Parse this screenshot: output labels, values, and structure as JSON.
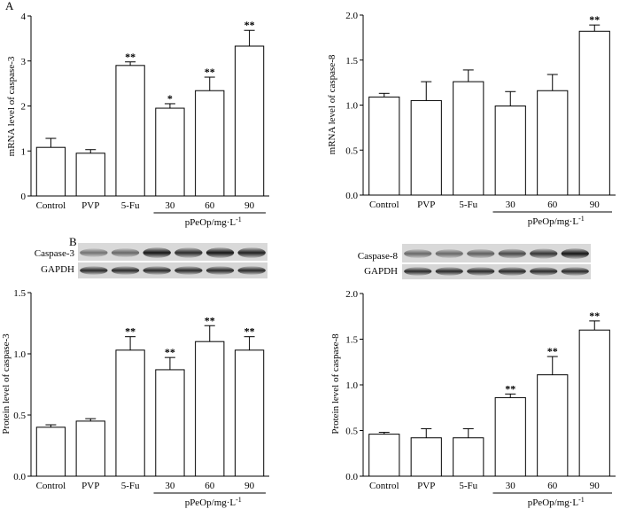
{
  "figure": {
    "panel_a_label": "A",
    "panel_b_label": "B"
  },
  "blots": [
    {
      "labels": [
        "Caspase-3",
        "GAPDH"
      ]
    },
    {
      "labels": [
        "Caspase-8",
        "GAPDH"
      ]
    }
  ],
  "chart_data": [
    {
      "type": "bar",
      "title": "",
      "xlabel": "",
      "ylabel": "mRNA level of caspase-3",
      "ylim": [
        0,
        4
      ],
      "yticks": [
        "0",
        "1",
        "2",
        "3",
        "4"
      ],
      "categories": [
        "Control",
        "PVP",
        "5-Fu",
        "30",
        "60",
        "90"
      ],
      "values": [
        1.08,
        0.95,
        2.9,
        1.95,
        2.34,
        3.33
      ],
      "errors": [
        0.2,
        0.08,
        0.08,
        0.1,
        0.3,
        0.35
      ],
      "significance": [
        "",
        "",
        "**",
        "*",
        "**",
        "**"
      ],
      "group_label": "pPeOp/mg·L",
      "group_label_sup": "-1",
      "grid": false
    },
    {
      "type": "bar",
      "title": "",
      "xlabel": "",
      "ylabel": "mRNA level of caspase-8",
      "ylim": [
        0,
        2.0
      ],
      "yticks": [
        "0.0",
        "0.5",
        "1.0",
        "1.5",
        "2.0"
      ],
      "categories": [
        "Control",
        "PVP",
        "5-Fu",
        "30",
        "60",
        "90"
      ],
      "values": [
        1.09,
        1.05,
        1.26,
        0.99,
        1.16,
        1.82
      ],
      "errors": [
        0.04,
        0.21,
        0.13,
        0.16,
        0.18,
        0.07
      ],
      "significance": [
        "",
        "",
        "",
        "",
        "",
        "**"
      ],
      "group_label": "pPeOp/mg·L",
      "group_label_sup": "-1",
      "grid": false
    },
    {
      "type": "bar",
      "title": "",
      "xlabel": "",
      "ylabel": "Protein level of caspase-3",
      "ylim": [
        0,
        1.5
      ],
      "yticks": [
        "0.0",
        "0.5",
        "1.0",
        "1.5"
      ],
      "categories": [
        "Control",
        "PVP",
        "5-Fu",
        "30",
        "60",
        "90"
      ],
      "values": [
        0.4,
        0.45,
        1.03,
        0.87,
        1.1,
        1.03
      ],
      "errors": [
        0.02,
        0.02,
        0.11,
        0.1,
        0.13,
        0.11
      ],
      "significance": [
        "",
        "",
        "**",
        "**",
        "**",
        "**"
      ],
      "group_label": "pPeOp/mg·L",
      "group_label_sup": "-1",
      "grid": false
    },
    {
      "type": "bar",
      "title": "",
      "xlabel": "",
      "ylabel": "Protein level of caspase-8",
      "ylim": [
        0,
        2.0
      ],
      "yticks": [
        "0.0",
        "0.5",
        "1.0",
        "1.5",
        "2.0"
      ],
      "categories": [
        "Control",
        "PVP",
        "5-Fu",
        "30",
        "60",
        "90"
      ],
      "values": [
        0.46,
        0.42,
        0.42,
        0.86,
        1.11,
        1.6
      ],
      "errors": [
        0.02,
        0.1,
        0.1,
        0.04,
        0.2,
        0.1
      ],
      "significance": [
        "",
        "",
        "",
        "**",
        "**",
        "**"
      ],
      "group_label": "pPeOp/mg·L",
      "group_label_sup": "-1",
      "grid": false
    }
  ]
}
